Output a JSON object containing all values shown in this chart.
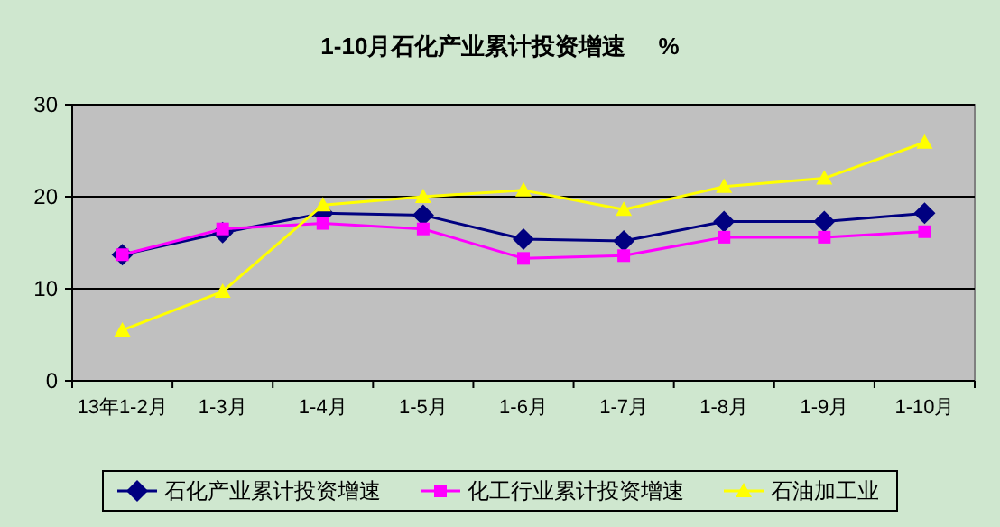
{
  "chart_data": {
    "type": "line",
    "title": "1-10月石化产业累计投资增速     %",
    "categories": [
      "13年1-2月",
      "1-3月",
      "1-4月",
      "1-5月",
      "1-6月",
      "1-7月",
      "1-8月",
      "1-9月",
      "1-10月"
    ],
    "series": [
      {
        "name": "石化产业累计投资增速",
        "color": "#000080",
        "marker": "diamond",
        "values": [
          13.7,
          16.1,
          18.2,
          18.0,
          15.4,
          15.2,
          17.3,
          17.3,
          18.2
        ]
      },
      {
        "name": "化工行业累计投资增速",
        "color": "#ff00ff",
        "marker": "square",
        "values": [
          13.7,
          16.5,
          17.1,
          16.5,
          13.3,
          13.6,
          15.6,
          15.6,
          16.2
        ]
      },
      {
        "name": "石油加工业",
        "color": "#ffff00",
        "marker": "triangle",
        "values": [
          5.5,
          9.7,
          19.1,
          20.0,
          20.7,
          18.6,
          21.1,
          22.0,
          25.9
        ]
      }
    ],
    "ylim": [
      0,
      30
    ],
    "yticks": [
      0,
      10,
      20,
      30
    ],
    "grid": "y",
    "legend": "bottom"
  }
}
